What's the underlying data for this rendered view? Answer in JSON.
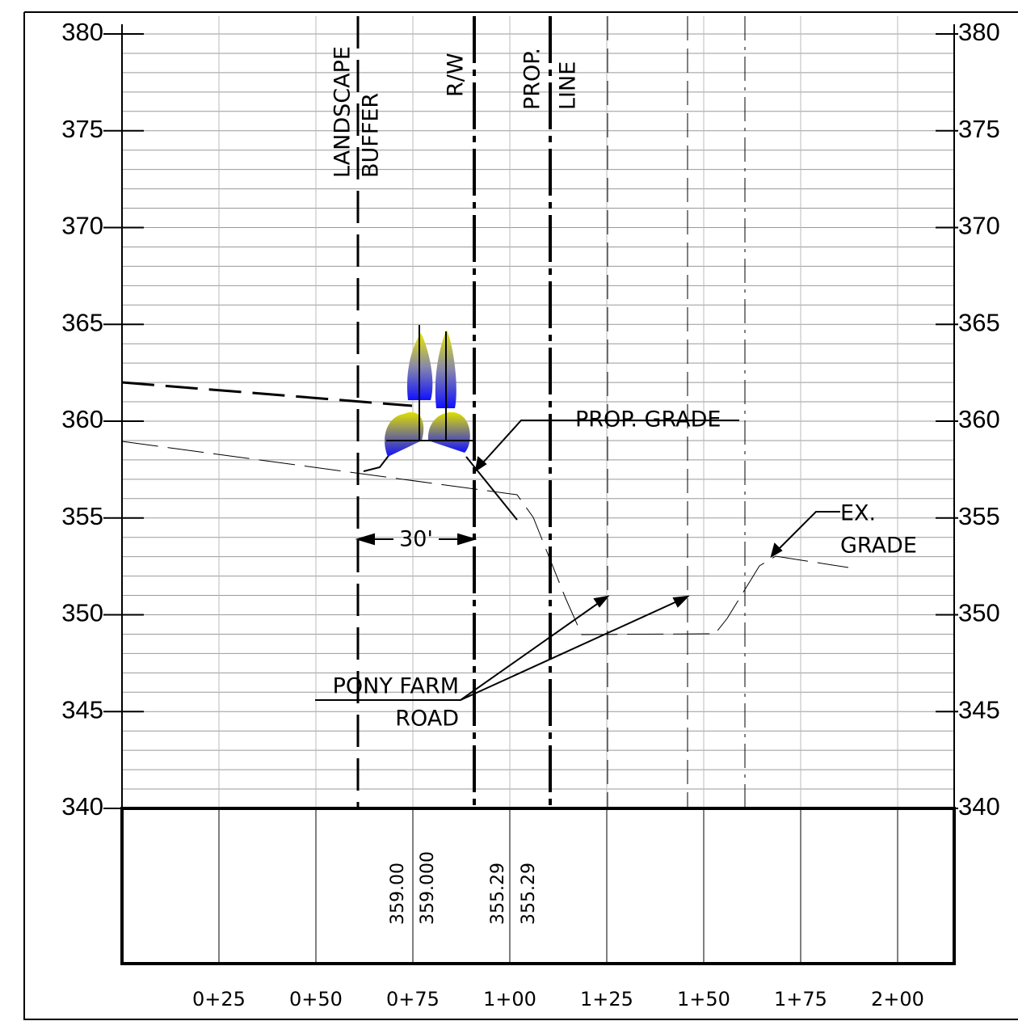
{
  "elevation_labels": [
    380,
    375,
    370,
    365,
    360,
    355,
    350,
    345,
    340
  ],
  "station_labels": [
    "0+25",
    "0+50",
    "0+75",
    "1+00",
    "1+25",
    "1+50",
    "1+75",
    "2+00"
  ],
  "annotations": {
    "landscape_buffer": [
      "LANDSCAPE",
      "BUFFER"
    ],
    "right_of_way": "R/W",
    "property_line": [
      "PROP.",
      "LINE"
    ],
    "proposed_grade": "PROP. GRADE",
    "existing_grade": [
      "EX.",
      "GRADE"
    ],
    "dimension": "30'",
    "road": [
      "PONY FARM",
      "ROAD"
    ]
  },
  "profile_values": [
    "359.00",
    "359.000",
    "355.29",
    "355.29"
  ]
}
